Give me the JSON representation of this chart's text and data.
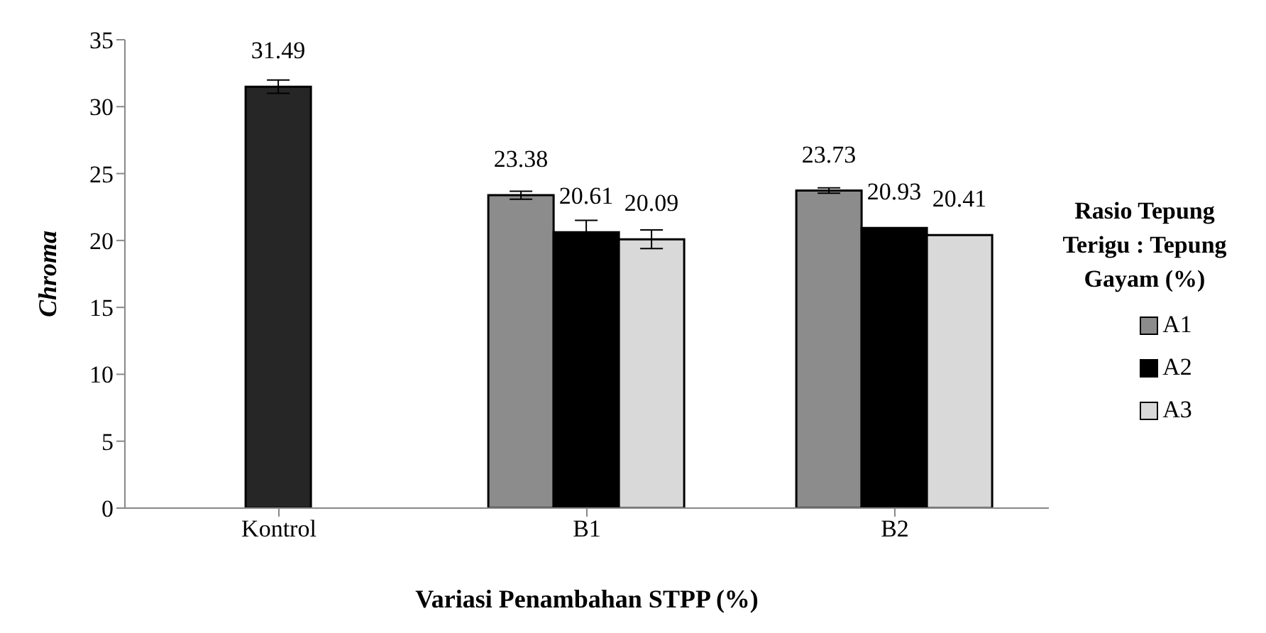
{
  "chart_data": {
    "type": "bar",
    "xlabel": "Variasi Penambahan STPP (%)",
    "ylabel": "Chroma",
    "legend_title": "Rasio Tepung Terigu : Tepung Gayam (%)",
    "categories": [
      "Kontrol",
      "B1",
      "B2"
    ],
    "series": [
      {
        "color": "#262626",
        "values": [
          31.49,
          null,
          null
        ],
        "errors": [
          0.5,
          null,
          null
        ]
      },
      {
        "name": "A1",
        "color": "#8c8c8c",
        "values": [
          null,
          23.38,
          23.73
        ],
        "errors": [
          null,
          0.3,
          0.2
        ]
      },
      {
        "name": "A2",
        "color": "#000000",
        "values": [
          null,
          20.61,
          20.93
        ],
        "errors": [
          null,
          0.9,
          null
        ]
      },
      {
        "name": "A3",
        "color": "#d9d9d9",
        "values": [
          null,
          20.09,
          20.41
        ],
        "errors": [
          null,
          0.7,
          null
        ]
      }
    ],
    "ylim": [
      0,
      35
    ],
    "yticks": [
      0,
      5,
      10,
      15,
      20,
      25,
      30,
      35
    ],
    "legend": "right",
    "data_labels": true
  }
}
